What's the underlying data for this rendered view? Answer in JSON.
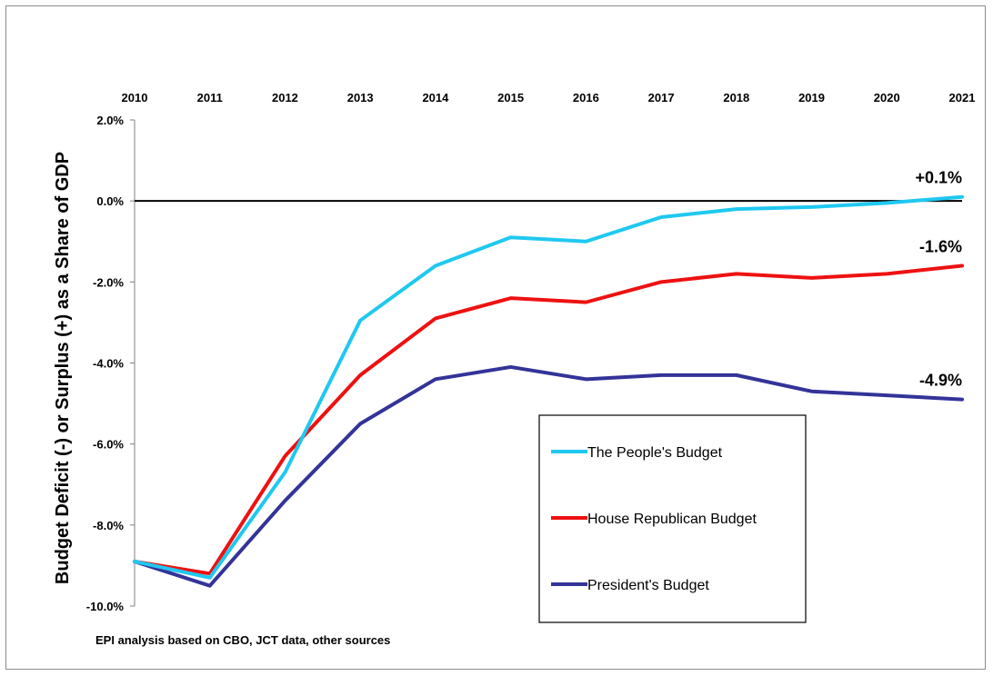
{
  "chart_data": {
    "type": "line",
    "title": "",
    "xlabel": "",
    "ylabel": "Budget Deficit (-) or Surplus (+) as a Share of GDP",
    "x": [
      2010,
      2011,
      2012,
      2013,
      2014,
      2015,
      2016,
      2017,
      2018,
      2019,
      2020,
      2021
    ],
    "x_tick_labels": [
      "2010",
      "2011",
      "2012",
      "2013",
      "2014",
      "2015",
      "2016",
      "2017",
      "2018",
      "2019",
      "2020",
      "2021"
    ],
    "x_axis_position": "top",
    "y_tick_labels": [
      "2.0%",
      "0.0%",
      "-2.0%",
      "-4.0%",
      "-6.0%",
      "-8.0%",
      "-10.0%"
    ],
    "ylim": [
      -10,
      2
    ],
    "grid": false,
    "zero_line": true,
    "legend_position": "bottom-right",
    "series": [
      {
        "name": "The People's Budget",
        "color": "#1fc8f0",
        "values": [
          -8.9,
          -9.3,
          -6.7,
          -2.95,
          -1.6,
          -0.9,
          -1.0,
          -0.4,
          -0.2,
          -0.15,
          -0.05,
          0.1
        ],
        "end_label": "+0.1%"
      },
      {
        "name": "House Republican Budget",
        "color": "#ee1111",
        "values": [
          -8.9,
          -9.2,
          -6.3,
          -4.3,
          -2.9,
          -2.4,
          -2.5,
          -2.0,
          -1.8,
          -1.9,
          -1.8,
          -1.6
        ],
        "end_label": "-1.6%"
      },
      {
        "name": "President's Budget",
        "color": "#333399",
        "values": [
          -8.9,
          -9.5,
          -7.4,
          -5.5,
          -4.4,
          -4.1,
          -4.4,
          -4.3,
          -4.3,
          -4.7,
          -4.8,
          -4.9
        ],
        "end_label": "-4.9%"
      }
    ],
    "source_note": "EPI analysis based on CBO, JCT data, other sources"
  }
}
